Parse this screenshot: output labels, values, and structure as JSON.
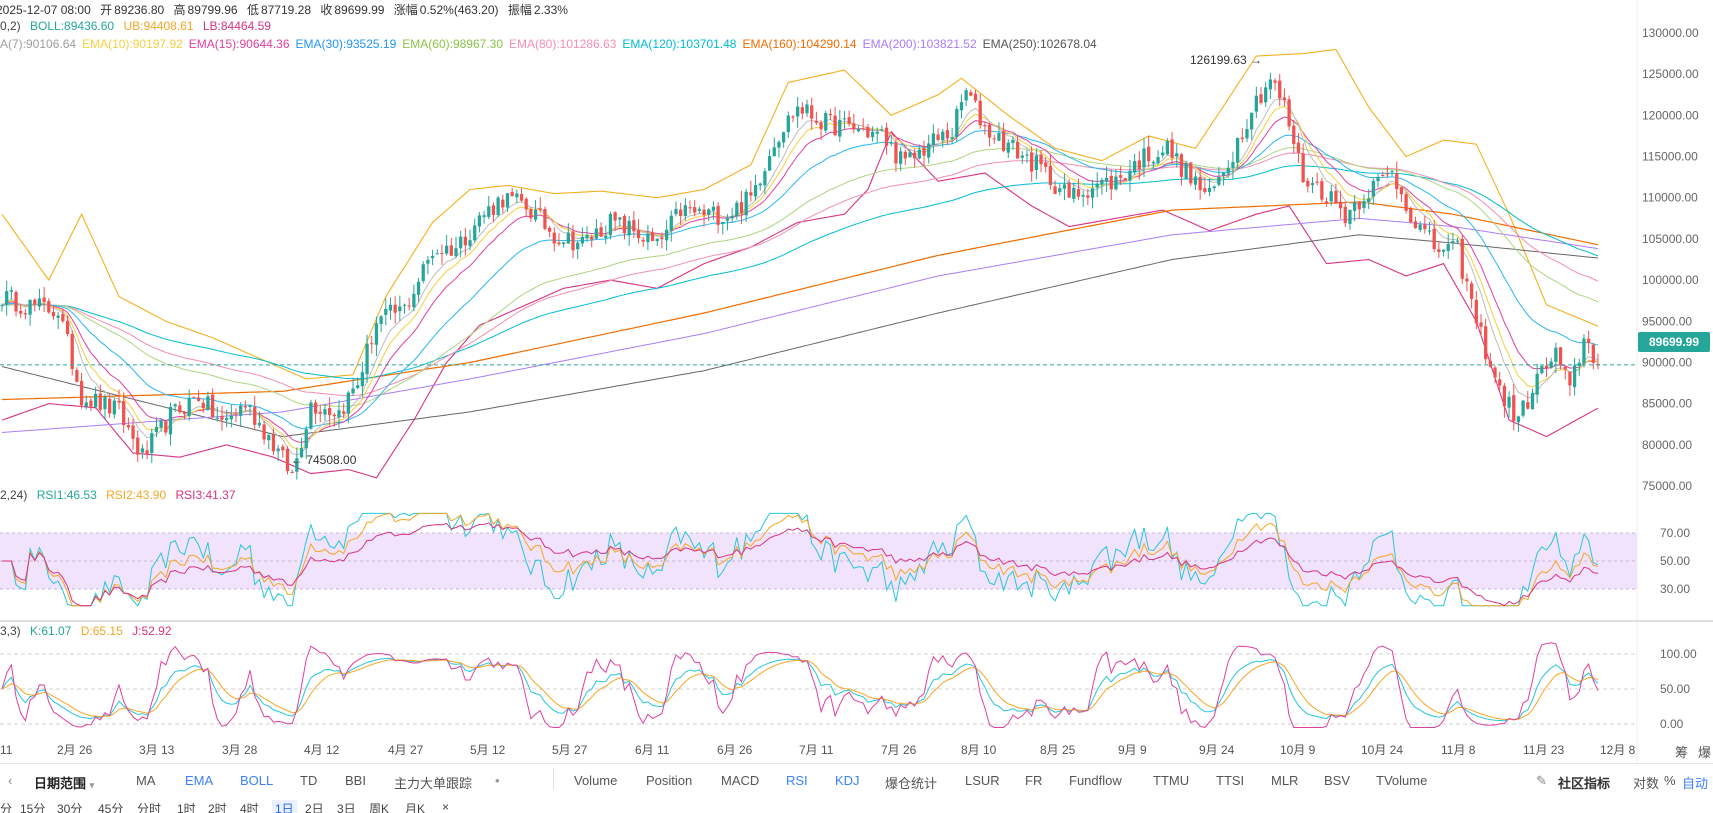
{
  "header": {
    "date": "2025-12-07 08:00",
    "open_label": "开",
    "open": "89236.80",
    "high_label": "高",
    "high": "89799.96",
    "low_label": "低",
    "low": "87719.28",
    "close_label": "收",
    "close": "89699.99",
    "change_label": "涨幅",
    "change": "0.52%(463.20)",
    "amp_label": "振幅",
    "amp": "2.33%"
  },
  "boll": {
    "prefix": "0,2)",
    "mid": "BOLL:89436.60",
    "ub": "UB:94408.61",
    "lb": "LB:84464.59"
  },
  "ema": [
    {
      "label": "A(7):90106.64",
      "color": "#9e9e9e"
    },
    {
      "label": "EMA(10):90197.92",
      "color": "#f4d03f"
    },
    {
      "label": "EMA(15):90644.36",
      "color": "#e040a0"
    },
    {
      "label": "EMA(30):93525.19",
      "color": "#2196f3"
    },
    {
      "label": "EMA(60):98967.30",
      "color": "#8bc34a"
    },
    {
      "label": "EMA(80):101286.63",
      "color": "#f48fb1"
    },
    {
      "label": "EMA(120):103701.48",
      "color": "#00bcd4"
    },
    {
      "label": "EMA(160):104290.14",
      "color": "#ef6c00"
    },
    {
      "label": "EMA(200):103821.52",
      "color": "#ab7df6"
    },
    {
      "label": "EMA(250):102678.04",
      "color": "#555555"
    }
  ],
  "rsi": {
    "prefix": "2,24)",
    "rsi1": "RSI1:46.53",
    "rsi2": "RSI2:43.90",
    "rsi3": "RSI3:41.37"
  },
  "kdj": {
    "prefix": "3,3)",
    "k": "K:61.07",
    "d": "D:65.15",
    "j": "J:52.92"
  },
  "annotations": {
    "high": "126199.63",
    "low": "74508.00"
  },
  "last_price": "89699.99",
  "colors": {
    "up": "#26a69a",
    "down": "#ef5350",
    "accent": "#3b82f6",
    "boll": "#f5b020",
    "rsi_band": "#f1e3fb"
  },
  "toolbar": {
    "date_range": "日期范围",
    "indicators": [
      "MA",
      "EMA",
      "BOLL",
      "TD",
      "BBI",
      "主力大单跟踪"
    ],
    "active_indicators": [
      "EMA",
      "BOLL",
      "RSI",
      "KDJ"
    ],
    "sub_indicators": [
      "Volume",
      "Position",
      "MACD",
      "RSI",
      "KDJ",
      "爆仓统计",
      "LSUR",
      "FR",
      "Fundflow",
      "TTMU",
      "TTSI",
      "MLR",
      "BSV",
      "TVolume"
    ],
    "right": {
      "community": "社区指标",
      "log": "对数",
      "percent": "%",
      "auto": "自动"
    }
  },
  "intervals": [
    "分",
    "15分",
    "30分",
    "45分",
    "分时",
    "1时",
    "2时",
    "4时",
    "1日",
    "2日",
    "3日",
    "周K",
    "月K"
  ],
  "selected_interval": "1日",
  "right_bottom": [
    "筹",
    "爆"
  ],
  "chart_data": [
    {
      "type": "candlestick",
      "x_ticks": [
        "11",
        "2月 26",
        "3月 13",
        "3月 28",
        "4月 12",
        "4月 27",
        "5月 12",
        "5月 27",
        "6月 11",
        "6月 26",
        "7月 11",
        "7月 26",
        "8月 10",
        "8月 25",
        "9月 9",
        "9月 24",
        "10月 9",
        "10月 24",
        "11月 8",
        "11月 23",
        "12月 8"
      ],
      "y_ticks": [
        "130000.00",
        "125000.00",
        "120000.00",
        "115000.00",
        "110000.00",
        "105000.00",
        "100000.00",
        "95000.00",
        "90000.00",
        "85000.00",
        "80000.00",
        "75000.00"
      ],
      "ylim": [
        72000,
        131500
      ],
      "trend": [
        {
          "i": 0,
          "v": 98000
        },
        {
          "i": 5,
          "v": 97000
        },
        {
          "i": 12,
          "v": 96300
        },
        {
          "i": 17,
          "v": 86000
        },
        {
          "i": 25,
          "v": 84000
        },
        {
          "i": 30,
          "v": 78500
        },
        {
          "i": 36,
          "v": 83500
        },
        {
          "i": 42,
          "v": 86000
        },
        {
          "i": 47,
          "v": 82500
        },
        {
          "i": 52,
          "v": 85000
        },
        {
          "i": 57,
          "v": 81000
        },
        {
          "i": 62,
          "v": 76300
        },
        {
          "i": 66,
          "v": 85000
        },
        {
          "i": 72,
          "v": 84000
        },
        {
          "i": 76,
          "v": 87500
        },
        {
          "i": 80,
          "v": 95000
        },
        {
          "i": 86,
          "v": 96500
        },
        {
          "i": 92,
          "v": 103500
        },
        {
          "i": 97,
          "v": 104000
        },
        {
          "i": 102,
          "v": 107500
        },
        {
          "i": 107,
          "v": 110000
        },
        {
          "i": 112,
          "v": 109000
        },
        {
          "i": 118,
          "v": 105500
        },
        {
          "i": 124,
          "v": 104500
        },
        {
          "i": 130,
          "v": 107000
        },
        {
          "i": 135,
          "v": 106000
        },
        {
          "i": 140,
          "v": 104000
        },
        {
          "i": 145,
          "v": 108500
        },
        {
          "i": 150,
          "v": 108000
        },
        {
          "i": 155,
          "v": 108000
        },
        {
          "i": 160,
          "v": 110000
        },
        {
          "i": 165,
          "v": 117000
        },
        {
          "i": 170,
          "v": 121000
        },
        {
          "i": 176,
          "v": 119000
        },
        {
          "i": 182,
          "v": 118500
        },
        {
          "i": 188,
          "v": 117500
        },
        {
          "i": 193,
          "v": 114000
        },
        {
          "i": 198,
          "v": 116500
        },
        {
          "i": 203,
          "v": 118000
        },
        {
          "i": 206,
          "v": 123000
        },
        {
          "i": 210,
          "v": 118500
        },
        {
          "i": 216,
          "v": 116000
        },
        {
          "i": 222,
          "v": 113500
        },
        {
          "i": 228,
          "v": 110000
        },
        {
          "i": 233,
          "v": 111500
        },
        {
          "i": 238,
          "v": 112000
        },
        {
          "i": 244,
          "v": 115000
        },
        {
          "i": 249,
          "v": 116000
        },
        {
          "i": 253,
          "v": 113000
        },
        {
          "i": 258,
          "v": 110000
        },
        {
          "i": 263,
          "v": 115500
        },
        {
          "i": 267,
          "v": 121000
        },
        {
          "i": 271,
          "v": 124500
        },
        {
          "i": 274,
          "v": 121000
        },
        {
          "i": 278,
          "v": 112500
        },
        {
          "i": 283,
          "v": 110500
        },
        {
          "i": 287,
          "v": 108000
        },
        {
          "i": 292,
          "v": 111000
        },
        {
          "i": 297,
          "v": 113000
        },
        {
          "i": 302,
          "v": 107000
        },
        {
          "i": 306,
          "v": 104000
        },
        {
          "i": 311,
          "v": 103500
        },
        {
          "i": 315,
          "v": 95000
        },
        {
          "i": 320,
          "v": 86500
        },
        {
          "i": 324,
          "v": 83000
        },
        {
          "i": 328,
          "v": 88000
        },
        {
          "i": 332,
          "v": 91000
        },
        {
          "i": 335,
          "v": 86500
        },
        {
          "i": 338,
          "v": 93000
        },
        {
          "i": 341,
          "v": 89700
        }
      ],
      "boll_upper": [
        {
          "i": 0,
          "v": 108000
        },
        {
          "i": 10,
          "v": 100000
        },
        {
          "i": 17,
          "v": 108000
        },
        {
          "i": 25,
          "v": 98000
        },
        {
          "i": 35,
          "v": 95000
        },
        {
          "i": 45,
          "v": 93000
        },
        {
          "i": 55,
          "v": 90500
        },
        {
          "i": 65,
          "v": 88000
        },
        {
          "i": 75,
          "v": 88500
        },
        {
          "i": 82,
          "v": 98000
        },
        {
          "i": 92,
          "v": 107000
        },
        {
          "i": 100,
          "v": 111000
        },
        {
          "i": 108,
          "v": 111500
        },
        {
          "i": 118,
          "v": 110500
        },
        {
          "i": 128,
          "v": 110800
        },
        {
          "i": 140,
          "v": 110000
        },
        {
          "i": 150,
          "v": 111000
        },
        {
          "i": 160,
          "v": 114000
        },
        {
          "i": 168,
          "v": 124000
        },
        {
          "i": 180,
          "v": 125500
        },
        {
          "i": 190,
          "v": 120000
        },
        {
          "i": 200,
          "v": 122500
        },
        {
          "i": 205,
          "v": 124500
        },
        {
          "i": 215,
          "v": 120000
        },
        {
          "i": 225,
          "v": 116000
        },
        {
          "i": 235,
          "v": 114500
        },
        {
          "i": 245,
          "v": 117500
        },
        {
          "i": 255,
          "v": 116000
        },
        {
          "i": 262,
          "v": 122000
        },
        {
          "i": 268,
          "v": 127200
        },
        {
          "i": 278,
          "v": 127500
        },
        {
          "i": 285,
          "v": 128000
        },
        {
          "i": 292,
          "v": 121000
        },
        {
          "i": 300,
          "v": 115000
        },
        {
          "i": 308,
          "v": 117000
        },
        {
          "i": 315,
          "v": 116500
        },
        {
          "i": 322,
          "v": 108000
        },
        {
          "i": 330,
          "v": 97000
        },
        {
          "i": 341,
          "v": 94400
        }
      ],
      "boll_lower": [
        {
          "i": 0,
          "v": 83000
        },
        {
          "i": 10,
          "v": 85000
        },
        {
          "i": 20,
          "v": 84500
        },
        {
          "i": 28,
          "v": 79000
        },
        {
          "i": 38,
          "v": 78500
        },
        {
          "i": 48,
          "v": 80000
        },
        {
          "i": 58,
          "v": 78500
        },
        {
          "i": 66,
          "v": 76500
        },
        {
          "i": 74,
          "v": 77000
        },
        {
          "i": 80,
          "v": 76000
        },
        {
          "i": 88,
          "v": 83000
        },
        {
          "i": 95,
          "v": 90000
        },
        {
          "i": 102,
          "v": 94500
        },
        {
          "i": 110,
          "v": 96500
        },
        {
          "i": 120,
          "v": 99000
        },
        {
          "i": 130,
          "v": 100000
        },
        {
          "i": 140,
          "v": 99000
        },
        {
          "i": 150,
          "v": 102000
        },
        {
          "i": 160,
          "v": 104000
        },
        {
          "i": 170,
          "v": 107000
        },
        {
          "i": 180,
          "v": 108000
        },
        {
          "i": 185,
          "v": 111000
        },
        {
          "i": 190,
          "v": 118000
        },
        {
          "i": 200,
          "v": 112000
        },
        {
          "i": 210,
          "v": 113000
        },
        {
          "i": 220,
          "v": 109000
        },
        {
          "i": 228,
          "v": 106500
        },
        {
          "i": 238,
          "v": 107500
        },
        {
          "i": 248,
          "v": 108500
        },
        {
          "i": 258,
          "v": 106000
        },
        {
          "i": 268,
          "v": 108000
        },
        {
          "i": 275,
          "v": 109000
        },
        {
          "i": 283,
          "v": 102000
        },
        {
          "i": 292,
          "v": 102500
        },
        {
          "i": 300,
          "v": 100500
        },
        {
          "i": 308,
          "v": 102000
        },
        {
          "i": 315,
          "v": 95000
        },
        {
          "i": 322,
          "v": 83000
        },
        {
          "i": 330,
          "v": 81000
        },
        {
          "i": 341,
          "v": 84460
        }
      ],
      "ema250": [
        {
          "i": 0,
          "v": 89500
        },
        {
          "i": 60,
          "v": 81000
        },
        {
          "i": 100,
          "v": 84000
        },
        {
          "i": 150,
          "v": 89000
        },
        {
          "i": 200,
          "v": 96000
        },
        {
          "i": 250,
          "v": 102500
        },
        {
          "i": 290,
          "v": 105500
        },
        {
          "i": 310,
          "v": 104500
        },
        {
          "i": 341,
          "v": 102678
        }
      ],
      "ema200": [
        {
          "i": 0,
          "v": 81500
        },
        {
          "i": 60,
          "v": 84000
        },
        {
          "i": 100,
          "v": 88000
        },
        {
          "i": 150,
          "v": 93500
        },
        {
          "i": 200,
          "v": 100500
        },
        {
          "i": 250,
          "v": 105500
        },
        {
          "i": 290,
          "v": 107500
        },
        {
          "i": 310,
          "v": 106500
        },
        {
          "i": 341,
          "v": 103821
        }
      ],
      "ema160": [
        {
          "i": 0,
          "v": 85500
        },
        {
          "i": 60,
          "v": 86500
        },
        {
          "i": 100,
          "v": 90000
        },
        {
          "i": 150,
          "v": 96000
        },
        {
          "i": 200,
          "v": 103000
        },
        {
          "i": 250,
          "v": 108500
        },
        {
          "i": 290,
          "v": 109500
        },
        {
          "i": 310,
          "v": 108000
        },
        {
          "i": 341,
          "v": 104290
        }
      ]
    },
    {
      "type": "line",
      "title": "RSI",
      "y_ticks": [
        "70.00",
        "50.00",
        "30.00"
      ],
      "ylim": [
        20,
        80
      ],
      "band": [
        30,
        70
      ],
      "last": {
        "rsi1": 46.53,
        "rsi2": 43.9,
        "rsi3": 41.37
      }
    },
    {
      "type": "line",
      "title": "KDJ",
      "y_ticks": [
        "100.00",
        "50.00",
        "0.00"
      ],
      "ylim": [
        -10,
        130
      ],
      "last": {
        "k": 61.07,
        "d": 65.15,
        "j": 52.92
      }
    }
  ]
}
